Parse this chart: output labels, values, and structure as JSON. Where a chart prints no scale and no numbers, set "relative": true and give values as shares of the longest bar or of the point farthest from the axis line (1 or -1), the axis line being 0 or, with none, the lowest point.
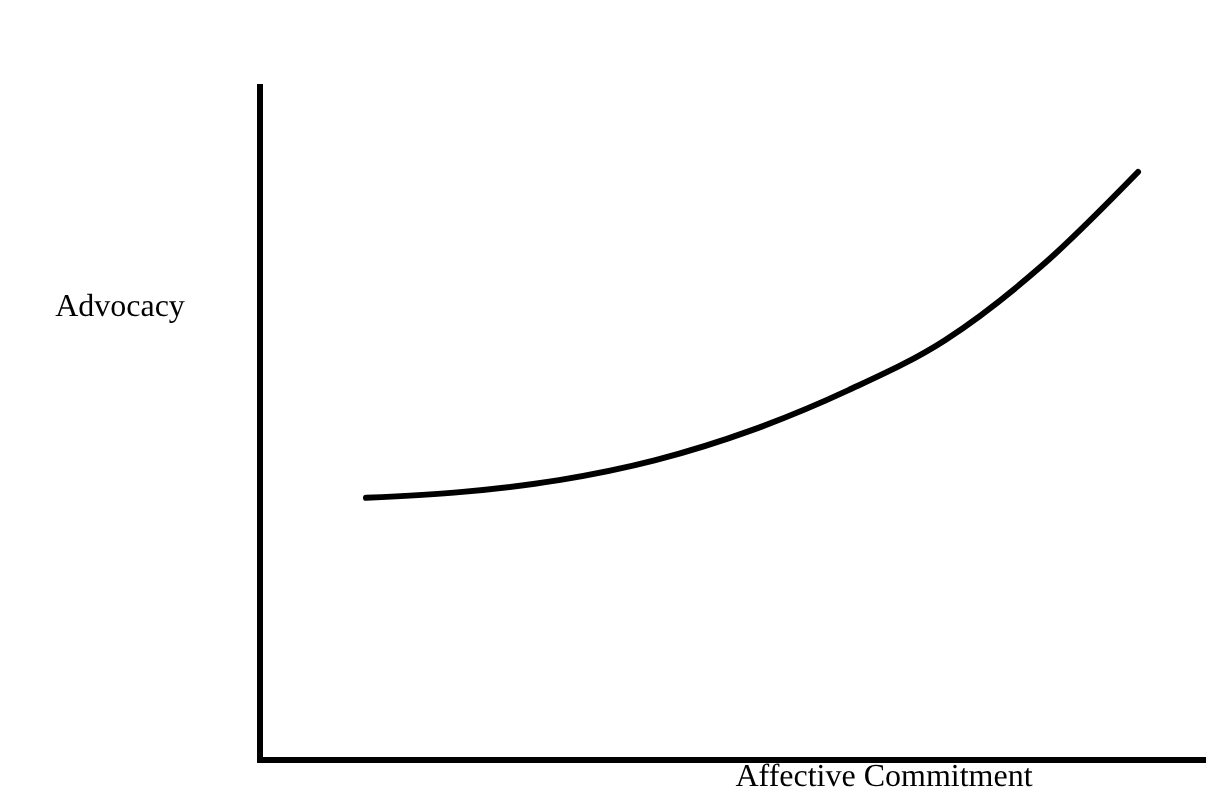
{
  "chart_data": {
    "type": "line",
    "relative": true,
    "xlabel": "Affective Commitment",
    "ylabel": "Advocacy",
    "categories": [
      null,
      null,
      null,
      null,
      null,
      null,
      null,
      null,
      null
    ],
    "series": [
      {
        "color": "#000000",
        "values": [
          0.446,
          0.456,
          0.476,
          0.51,
          0.561,
          0.629,
          0.714,
          0.84,
          1
        ]
      }
    ],
    "marker": "none",
    "line_style": "solid"
  }
}
